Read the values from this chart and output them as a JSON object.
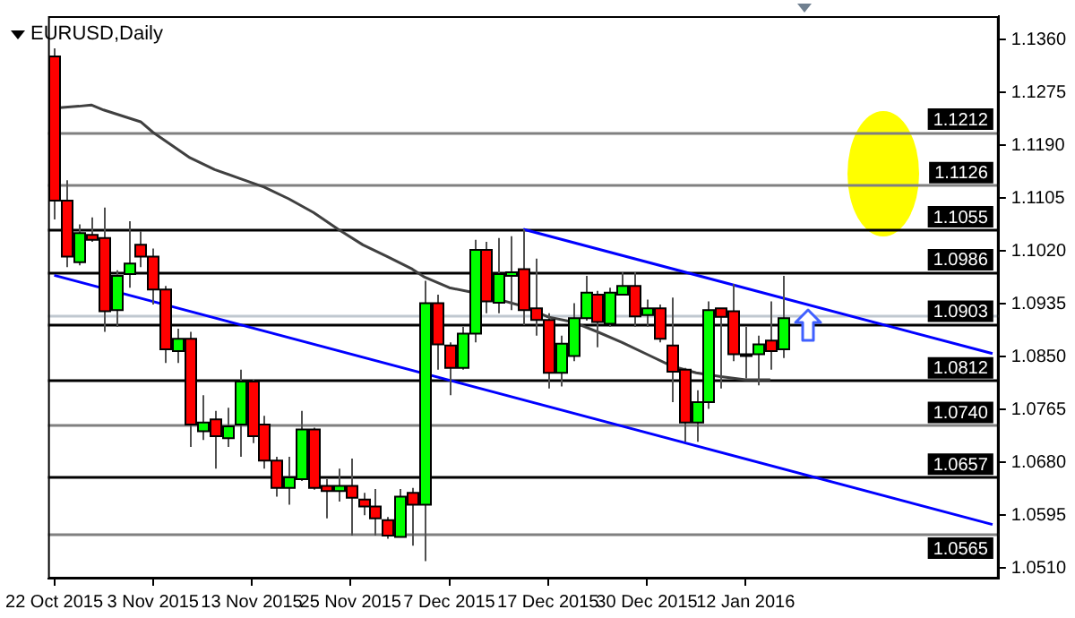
{
  "chart_data": {
    "type": "candlestick",
    "title": "EURUSD,Daily",
    "categories": [
      "22 Oct 2015",
      null,
      null,
      null,
      null,
      null,
      null,
      null,
      "3 Nov 2015",
      null,
      null,
      null,
      null,
      null,
      null,
      null,
      "13 Nov 2015",
      null,
      null,
      null,
      null,
      null,
      null,
      null,
      "25 Nov 2015",
      null,
      null,
      null,
      null,
      null,
      null,
      null,
      "7 Dec 2015",
      null,
      null,
      null,
      null,
      null,
      null,
      null,
      "17 Dec 2015",
      null,
      null,
      null,
      null,
      null,
      null,
      null,
      "30 Dec 2015",
      null,
      null,
      null,
      null,
      null,
      null,
      null,
      "12 Jan 2016",
      null,
      null,
      null,
      null,
      null,
      null,
      null,
      null,
      null,
      null,
      null,
      null,
      null,
      null,
      null,
      null,
      null,
      null,
      null,
      null
    ],
    "ohlc": [
      [
        1.1333,
        1.1346,
        1.1071,
        1.1101
      ],
      [
        1.1101,
        1.1134,
        1.0994,
        1.1011
      ],
      [
        1.1002,
        1.1063,
        1.0997,
        1.1049
      ],
      [
        1.1046,
        1.1074,
        1.1035,
        1.1038
      ],
      [
        1.1041,
        1.109,
        1.089,
        1.0923
      ],
      [
        1.0925,
        1.0989,
        1.0898,
        1.098
      ],
      [
        1.0983,
        1.1068,
        1.0961,
        1.1
      ],
      [
        1.103,
        1.1052,
        1.0994,
        1.1011
      ],
      [
        1.1011,
        1.1024,
        1.0934,
        1.0958
      ],
      [
        1.0958,
        1.0964,
        1.084,
        1.0862
      ],
      [
        1.0859,
        1.0895,
        1.084,
        1.0879
      ],
      [
        1.0879,
        1.089,
        1.0705,
        1.0741
      ],
      [
        1.073,
        1.0788,
        1.0716,
        1.0744
      ],
      [
        1.0749,
        1.0763,
        1.067,
        1.0722
      ],
      [
        1.0719,
        1.0768,
        1.0705,
        1.0738
      ],
      [
        1.0741,
        1.0829,
        1.0689,
        1.081
      ],
      [
        1.081,
        1.0813,
        1.0711,
        1.0722
      ],
      [
        1.0741,
        1.0755,
        1.067,
        1.0683
      ],
      [
        1.0683,
        1.0689,
        1.0625,
        1.0639
      ],
      [
        1.0639,
        1.0689,
        1.0612,
        1.0656
      ],
      [
        1.0653,
        1.0763,
        1.065,
        1.0733
      ],
      [
        1.0733,
        1.0736,
        1.0636,
        1.0639
      ],
      [
        1.0642,
        1.0653,
        1.059,
        1.0634
      ],
      [
        1.0634,
        1.067,
        1.0617,
        1.0642
      ],
      [
        1.0642,
        1.0686,
        1.0562,
        1.0623
      ],
      [
        1.062,
        1.0631,
        1.0595,
        1.0609
      ],
      [
        1.0609,
        1.0637,
        1.0562,
        1.059
      ],
      [
        1.0587,
        1.0592,
        1.0557,
        1.0562
      ],
      [
        1.056,
        1.0637,
        1.056,
        1.0625
      ],
      [
        1.0631,
        1.0639,
        1.0546,
        1.0612
      ],
      [
        1.0612,
        1.0972,
        1.0521,
        1.0936
      ],
      [
        1.0936,
        1.095,
        1.0829,
        1.087
      ],
      [
        1.0868,
        1.0873,
        1.0788,
        1.0832
      ],
      [
        1.0832,
        1.0898,
        1.0829,
        1.0887
      ],
      [
        1.0887,
        1.1038,
        1.0873,
        1.1022
      ],
      [
        1.1022,
        1.1035,
        1.092,
        1.0939
      ],
      [
        1.0937,
        1.1041,
        1.092,
        1.0983
      ],
      [
        1.098,
        1.1044,
        1.0925,
        1.0986
      ],
      [
        1.0991,
        1.1055,
        1.0901,
        1.0925
      ],
      [
        1.0928,
        1.1008,
        1.0884,
        1.0909
      ],
      [
        1.0909,
        1.092,
        1.0799,
        1.0824
      ],
      [
        1.0824,
        1.0884,
        1.0802,
        1.0871
      ],
      [
        1.0851,
        1.0936,
        1.0843,
        1.0912
      ],
      [
        1.0912,
        1.098,
        1.0908,
        1.0953
      ],
      [
        1.095,
        1.0956,
        1.0865,
        1.0906
      ],
      [
        1.0903,
        1.0961,
        1.0898,
        1.0953
      ],
      [
        1.095,
        1.0986,
        1.095,
        1.0964
      ],
      [
        1.0964,
        1.0986,
        1.0898,
        1.0915
      ],
      [
        1.0917,
        1.0942,
        1.0898,
        1.0928
      ],
      [
        1.0928,
        1.0934,
        1.0873,
        1.0879
      ],
      [
        1.0868,
        1.0945,
        1.0777,
        1.0826
      ],
      [
        1.0829,
        1.0832,
        1.0713,
        1.0744
      ],
      [
        1.0744,
        1.0796,
        1.0713,
        1.0777
      ],
      [
        1.0777,
        1.0939,
        1.0766,
        1.0925
      ],
      [
        1.0928,
        1.0928,
        1.0799,
        1.0914
      ],
      [
        1.0923,
        1.0967,
        1.0843,
        1.0854
      ],
      [
        1.0854,
        1.0898,
        1.0815,
        1.0854
      ],
      [
        1.0854,
        1.0884,
        1.0804,
        1.087
      ],
      [
        1.0876,
        1.0939,
        1.0829,
        1.0859
      ],
      [
        1.0862,
        1.098,
        1.0848,
        1.0912
      ],
      null,
      null,
      null,
      null,
      null,
      null,
      null,
      null,
      null,
      null,
      null,
      null,
      null,
      null,
      null,
      null,
      null
    ],
    "colors": [
      "#ff0000",
      "#ff0000",
      "#00ff00",
      "#ff0000",
      "#ff0000",
      "#00ff00",
      "#00ff00",
      "#ff0000",
      "#ff0000",
      "#ff0000",
      "#00ff00",
      "#ff0000",
      "#00ff00",
      "#ff0000",
      "#00ff00",
      "#00ff00",
      "#ff0000",
      "#ff0000",
      "#ff0000",
      "#00ff00",
      "#00ff00",
      "#ff0000",
      "#ff0000",
      "#00ff00",
      "#ff0000",
      "#ff0000",
      "#ff0000",
      "#ff0000",
      "#00ff00",
      "#ff0000",
      "#00ff00",
      "#ff0000",
      "#ff0000",
      "#00ff00",
      "#00ff00",
      "#ff0000",
      "#00ff00",
      "#00ff00",
      "#ff0000",
      "#ff0000",
      "#ff0000",
      "#00ff00",
      "#00ff00",
      "#00ff00",
      "#ff0000",
      "#00ff00",
      "#00ff00",
      "#ff0000",
      "#00ff00",
      "#ff0000",
      "#ff0000",
      "#ff0000",
      "#00ff00",
      "#00ff00",
      "#ff0000",
      "#ff0000",
      "#808080",
      "#00ff00",
      "#ff0000",
      "#00ff00",
      null,
      null,
      null,
      null,
      null,
      null,
      null,
      null,
      null,
      null,
      null,
      null,
      null,
      null,
      null,
      null,
      null
    ],
    "series": [
      {
        "type": "line",
        "color": "#404040",
        "values": [
          1.125,
          null,
          1.1253,
          1.1255,
          1.1247,
          null,
          null,
          1.1228,
          1.1211,
          null,
          null,
          1.117,
          null,
          1.1151,
          null,
          1.1137,
          null,
          1.1123,
          null,
          1.1104,
          null,
          1.1082,
          null,
          1.1055,
          null,
          1.103,
          null,
          1.1011,
          null,
          1.0991,
          1.0978,
          null,
          1.0961,
          null,
          1.0953,
          null,
          1.0942,
          null,
          1.0931,
          null,
          1.0914,
          null,
          1.0906,
          null,
          1.089,
          null,
          1.0873,
          null,
          1.0854,
          null,
          1.0835,
          null,
          1.0824,
          null,
          1.0818,
          null,
          1.0813,
          null,
          1.0813,
          null,
          null,
          null,
          null,
          null,
          null,
          null,
          null,
          null,
          null,
          null,
          null,
          null,
          null,
          null,
          null,
          null,
          null
        ]
      },
      {
        "type": "line",
        "color": "#0000ff",
        "values": [
          null,
          null,
          null,
          null,
          null,
          null,
          null,
          null,
          null,
          null,
          null,
          null,
          null,
          null,
          null,
          null,
          null,
          null,
          null,
          null,
          null,
          null,
          null,
          null,
          null,
          null,
          null,
          null,
          null,
          null,
          null,
          null,
          null,
          null,
          null,
          null,
          null,
          null,
          1.1055,
          null,
          null,
          null,
          null,
          null,
          null,
          null,
          null,
          null,
          null,
          null,
          null,
          null,
          null,
          null,
          null,
          null,
          null,
          null,
          null,
          null,
          null,
          null,
          null,
          null,
          null,
          null,
          null,
          null,
          null,
          null,
          null,
          null,
          null,
          null,
          null,
          null,
          1.0855
        ]
      },
      {
        "type": "line",
        "color": "#0000ff",
        "values": [
          1.0981,
          null,
          null,
          null,
          null,
          null,
          null,
          null,
          null,
          null,
          null,
          null,
          null,
          null,
          null,
          null,
          null,
          null,
          null,
          null,
          null,
          null,
          null,
          null,
          null,
          null,
          null,
          null,
          null,
          null,
          null,
          null,
          null,
          null,
          null,
          null,
          null,
          null,
          null,
          null,
          null,
          null,
          null,
          null,
          null,
          null,
          null,
          null,
          null,
          null,
          null,
          null,
          null,
          null,
          null,
          null,
          null,
          null,
          null,
          null,
          null,
          null,
          null,
          null,
          null,
          null,
          null,
          null,
          null,
          null,
          null,
          null,
          null,
          null,
          null,
          null,
          1.058
        ]
      }
    ],
    "ylim": [
      1.0493,
      1.1398
    ],
    "yticks": [
      {
        "value": 1.136,
        "label": "1.1360"
      },
      1.1275,
      {
        "value": 1.119,
        "label": "1.1190"
      },
      1.1105,
      {
        "value": 1.102,
        "label": "1.1020"
      },
      1.0935,
      {
        "value": 1.085,
        "label": "1.0850"
      },
      1.0765,
      {
        "value": 1.068,
        "label": "1.0680"
      },
      1.0595,
      {
        "value": 1.051,
        "label": "1.0510"
      }
    ],
    "ref_lines": [
      {
        "axis": "y",
        "value": 1.1212,
        "label": "1.1212",
        "color": "#808080"
      },
      {
        "axis": "y",
        "value": 1.1126,
        "label": "1.1126",
        "color": "#808080"
      },
      {
        "axis": "y",
        "value": 1.1055,
        "label": "1.1055",
        "color": "#000000"
      },
      {
        "axis": "y",
        "value": 1.0986,
        "label": "1.0986",
        "color": "#000000"
      },
      {
        "axis": "y",
        "value": 1.0917,
        "label": null,
        "color": "#c0c8d0"
      },
      {
        "axis": "y",
        "value": 1.0903,
        "label": "1.0903",
        "color": "#000000"
      },
      {
        "axis": "y",
        "value": 1.0812,
        "label": "1.0812",
        "color": "#000000"
      },
      {
        "axis": "y",
        "value": 1.074,
        "label": "1.0740",
        "color": "#808080"
      },
      {
        "axis": "y",
        "value": 1.0657,
        "label": "1.0657",
        "color": "#000000"
      },
      {
        "axis": "y",
        "value": 1.0565,
        "label": "1.0565",
        "color": "#808080"
      }
    ]
  }
}
